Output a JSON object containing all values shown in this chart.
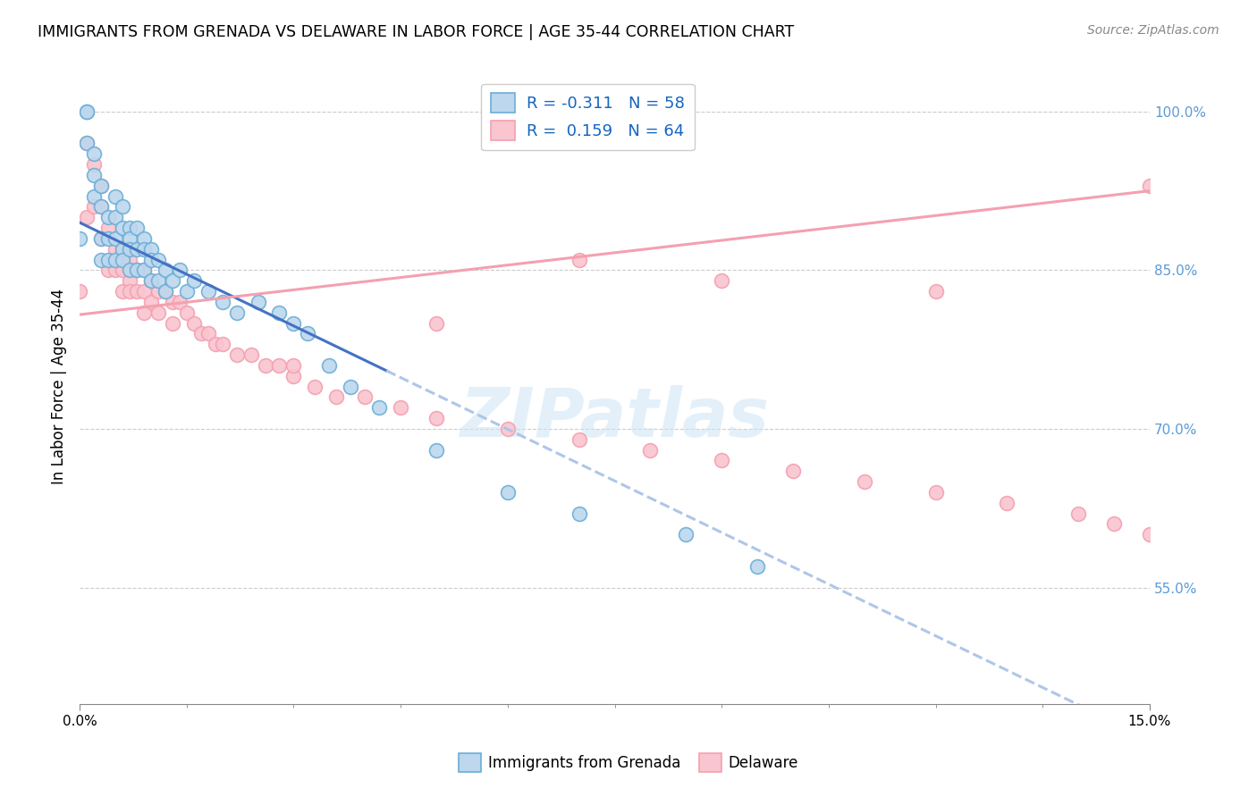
{
  "title": "IMMIGRANTS FROM GRENADA VS DELAWARE IN LABOR FORCE | AGE 35-44 CORRELATION CHART",
  "source": "Source: ZipAtlas.com",
  "ylabel": "In Labor Force | Age 35-44",
  "right_yticks": [
    "55.0%",
    "70.0%",
    "85.0%",
    "100.0%"
  ],
  "right_ytick_vals": [
    0.55,
    0.7,
    0.85,
    1.0
  ],
  "xmin": 0.0,
  "xmax": 0.15,
  "ymin": 0.44,
  "ymax": 1.04,
  "legend_r1_r": "R = -0.311",
  "legend_r1_n": "N = 58",
  "legend_r2_r": "R =  0.159",
  "legend_r2_n": "N = 64",
  "blue_edge": "#6baed6",
  "blue_face": "#bdd7ee",
  "pink_edge": "#f4a0b0",
  "pink_face": "#f9c5cf",
  "trend_blue_solid": "#4472c4",
  "trend_blue_dash": "#aec6e8",
  "trend_pink": "#f4a0b0",
  "watermark": "ZIPatlas",
  "grenada_x": [
    0.0,
    0.001,
    0.001,
    0.001,
    0.002,
    0.002,
    0.002,
    0.003,
    0.003,
    0.003,
    0.003,
    0.004,
    0.004,
    0.004,
    0.005,
    0.005,
    0.005,
    0.005,
    0.006,
    0.006,
    0.006,
    0.006,
    0.007,
    0.007,
    0.007,
    0.007,
    0.008,
    0.008,
    0.008,
    0.009,
    0.009,
    0.009,
    0.01,
    0.01,
    0.01,
    0.011,
    0.011,
    0.012,
    0.012,
    0.013,
    0.014,
    0.015,
    0.016,
    0.018,
    0.02,
    0.022,
    0.025,
    0.028,
    0.03,
    0.032,
    0.035,
    0.038,
    0.042,
    0.05,
    0.06,
    0.07,
    0.085,
    0.095
  ],
  "grenada_y": [
    0.88,
    1.0,
    1.0,
    0.97,
    0.96,
    0.94,
    0.92,
    0.93,
    0.91,
    0.88,
    0.86,
    0.9,
    0.88,
    0.86,
    0.92,
    0.9,
    0.88,
    0.86,
    0.91,
    0.89,
    0.87,
    0.86,
    0.89,
    0.88,
    0.87,
    0.85,
    0.89,
    0.87,
    0.85,
    0.88,
    0.87,
    0.85,
    0.87,
    0.86,
    0.84,
    0.86,
    0.84,
    0.85,
    0.83,
    0.84,
    0.85,
    0.83,
    0.84,
    0.83,
    0.82,
    0.81,
    0.82,
    0.81,
    0.8,
    0.79,
    0.76,
    0.74,
    0.72,
    0.68,
    0.64,
    0.62,
    0.6,
    0.57
  ],
  "delaware_x": [
    0.0,
    0.001,
    0.001,
    0.002,
    0.002,
    0.003,
    0.003,
    0.003,
    0.004,
    0.004,
    0.005,
    0.005,
    0.006,
    0.006,
    0.006,
    0.007,
    0.007,
    0.007,
    0.008,
    0.008,
    0.009,
    0.009,
    0.009,
    0.01,
    0.01,
    0.011,
    0.011,
    0.012,
    0.013,
    0.013,
    0.014,
    0.015,
    0.016,
    0.017,
    0.018,
    0.019,
    0.02,
    0.022,
    0.024,
    0.026,
    0.028,
    0.03,
    0.033,
    0.036,
    0.04,
    0.045,
    0.05,
    0.06,
    0.07,
    0.08,
    0.09,
    0.1,
    0.11,
    0.12,
    0.13,
    0.14,
    0.145,
    0.15,
    0.03,
    0.05,
    0.07,
    0.09,
    0.12,
    0.15
  ],
  "delaware_y": [
    0.83,
    0.97,
    0.9,
    0.95,
    0.91,
    0.93,
    0.91,
    0.88,
    0.89,
    0.85,
    0.87,
    0.85,
    0.87,
    0.85,
    0.83,
    0.86,
    0.84,
    0.83,
    0.85,
    0.83,
    0.85,
    0.83,
    0.81,
    0.84,
    0.82,
    0.83,
    0.81,
    0.83,
    0.82,
    0.8,
    0.82,
    0.81,
    0.8,
    0.79,
    0.79,
    0.78,
    0.78,
    0.77,
    0.77,
    0.76,
    0.76,
    0.75,
    0.74,
    0.73,
    0.73,
    0.72,
    0.71,
    0.7,
    0.69,
    0.68,
    0.67,
    0.66,
    0.65,
    0.64,
    0.63,
    0.62,
    0.61,
    0.6,
    0.76,
    0.8,
    0.86,
    0.84,
    0.83,
    0.93
  ],
  "blue_trend_x0": 0.0,
  "blue_trend_y0": 0.895,
  "blue_trend_x1": 0.043,
  "blue_trend_y1": 0.755,
  "blue_trend_dash_x0": 0.043,
  "blue_trend_dash_x1": 0.15,
  "pink_trend_x0": 0.0,
  "pink_trend_y0": 0.808,
  "pink_trend_x1": 0.15,
  "pink_trend_y1": 0.925
}
